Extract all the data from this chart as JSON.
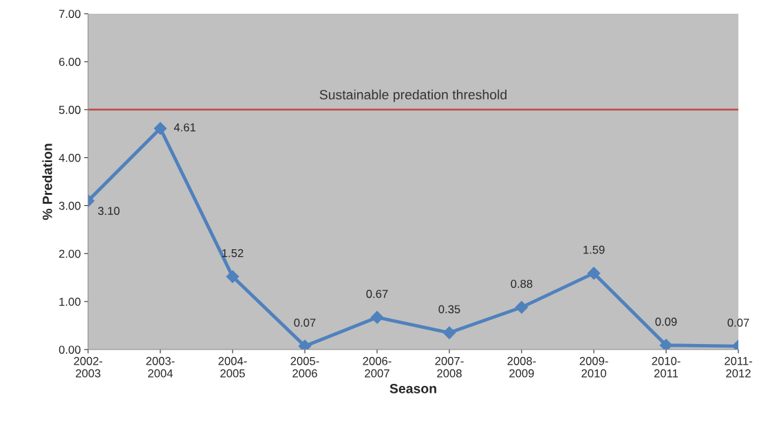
{
  "chart_data": {
    "type": "line",
    "xlabel": "Season",
    "ylabel": "% Predation",
    "categories": [
      "2002-\n2003",
      "2003-\n2004",
      "2004-\n2005",
      "2005-\n2006",
      "2006-\n2007",
      "2007-\n2008",
      "2008-\n2009",
      "2009-\n2010",
      "2010-\n2011",
      "2011-\n2012"
    ],
    "series": [
      {
        "color": "#4f81bd",
        "values": [
          3.1,
          4.61,
          1.52,
          0.07,
          0.67,
          0.35,
          0.88,
          1.59,
          0.09,
          0.07
        ],
        "value_labels": [
          "3.10",
          "4.61",
          "1.52",
          "0.07",
          "0.67",
          "0.35",
          "0.88",
          "1.59",
          "0.09",
          "0.07"
        ]
      }
    ],
    "ylim": [
      0,
      7
    ],
    "yticks": [
      {
        "value": 0,
        "label": "0.00"
      },
      {
        "value": 1,
        "label": "1.00"
      },
      {
        "value": 2,
        "label": "2.00"
      },
      {
        "value": 3,
        "label": "3.00"
      },
      {
        "value": 4,
        "label": "4.00"
      },
      {
        "value": 5,
        "label": "5.00"
      },
      {
        "value": 6,
        "label": "6.00"
      },
      {
        "value": 7,
        "label": "7.00"
      }
    ],
    "ref_lines": [
      {
        "axis": "y",
        "value": 5,
        "label": "Sustainable predation threshold",
        "color": "#c0504d"
      }
    ],
    "marker": "diamond",
    "line_style": "solid",
    "grid": false,
    "legend": false
  }
}
